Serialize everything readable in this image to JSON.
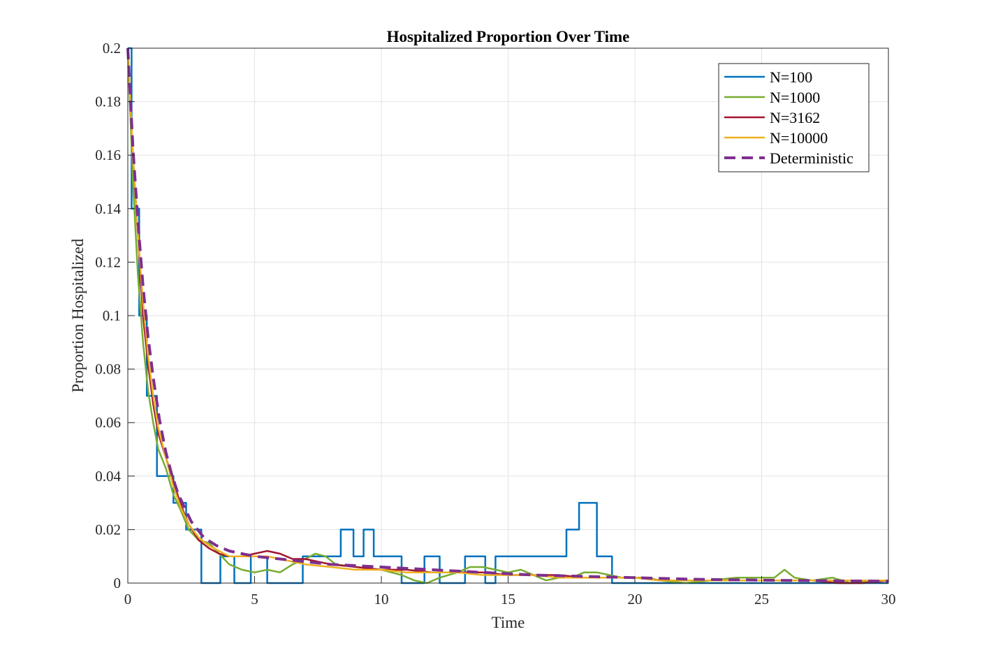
{
  "chart_data": {
    "type": "line",
    "title": "Hospitalized Proportion Over Time",
    "xlabel": "Time",
    "ylabel": "Proportion Hospitalized",
    "xlim": [
      0,
      30
    ],
    "ylim": [
      0,
      0.2
    ],
    "xticks": [
      0,
      5,
      10,
      15,
      20,
      25,
      30
    ],
    "yticks": [
      0,
      0.02,
      0.04,
      0.06,
      0.08,
      0.1,
      0.12,
      0.14,
      0.16,
      0.18,
      0.2
    ],
    "grid": true,
    "legend_position": "top-right",
    "series": [
      {
        "name": "N=100",
        "color": "#0072BD",
        "style": "step",
        "x": [
          0,
          0.15,
          0.45,
          0.75,
          1.15,
          1.8,
          2.3,
          2.9,
          3.65,
          4.2,
          4.85,
          5.5,
          6.9,
          8.4,
          8.9,
          9.3,
          9.7,
          10.8,
          11.7,
          12.3,
          13.3,
          14.1,
          14.5,
          17.3,
          17.8,
          18.5,
          19.1,
          30
        ],
        "y": [
          0.2,
          0.14,
          0.1,
          0.07,
          0.04,
          0.03,
          0.02,
          0.0,
          0.01,
          0.0,
          0.01,
          0.0,
          0.01,
          0.02,
          0.01,
          0.02,
          0.01,
          0.0,
          0.01,
          0.0,
          0.01,
          0.0,
          0.01,
          0.02,
          0.03,
          0.01,
          0.0,
          0.0
        ]
      },
      {
        "name": "N=1000",
        "color": "#77AC30",
        "x": [
          0,
          0.2,
          0.4,
          0.6,
          0.8,
          1.0,
          1.2,
          1.5,
          1.8,
          2.1,
          2.4,
          2.8,
          3.2,
          3.6,
          4.0,
          4.5,
          5.0,
          5.5,
          6.0,
          6.5,
          7.0,
          7.4,
          7.8,
          8.2,
          9.0,
          10.0,
          10.8,
          11.3,
          11.8,
          12.3,
          13.0,
          13.5,
          14.0,
          14.5,
          15.0,
          15.5,
          16.0,
          16.5,
          17.0,
          17.5,
          18.0,
          18.5,
          19.0,
          19.5,
          20.0,
          20.5,
          21.0,
          22.0,
          23.0,
          24.0,
          25.0,
          25.5,
          25.9,
          26.3,
          27.0,
          27.8,
          28.5,
          30.0
        ],
        "y": [
          0.2,
          0.15,
          0.115,
          0.09,
          0.072,
          0.06,
          0.05,
          0.043,
          0.033,
          0.027,
          0.02,
          0.016,
          0.015,
          0.011,
          0.007,
          0.005,
          0.004,
          0.005,
          0.004,
          0.007,
          0.009,
          0.011,
          0.01,
          0.007,
          0.006,
          0.005,
          0.003,
          0.001,
          0.0,
          0.002,
          0.004,
          0.006,
          0.006,
          0.005,
          0.004,
          0.005,
          0.003,
          0.001,
          0.002,
          0.002,
          0.004,
          0.004,
          0.003,
          0.002,
          0.002,
          0.002,
          0.001,
          0.0,
          0.001,
          0.002,
          0.002,
          0.002,
          0.005,
          0.002,
          0.001,
          0.002,
          0.0,
          0.001
        ]
      },
      {
        "name": "N=3162",
        "color": "#A2142F",
        "x": [
          0,
          0.2,
          0.4,
          0.6,
          0.8,
          1.0,
          1.2,
          1.5,
          1.8,
          2.1,
          2.4,
          2.8,
          3.2,
          3.6,
          4.0,
          4.5,
          5.0,
          5.5,
          6.0,
          6.5,
          7.0,
          7.5,
          8.0,
          9.0,
          10.0,
          11.0,
          12.0,
          13.0,
          14.0,
          15.0,
          16.0,
          17.0,
          18.0,
          19.0,
          20.0,
          21.0,
          22.0,
          23.0,
          24.0,
          25.0,
          26.0,
          27.0,
          28.0,
          29.0,
          30.0
        ],
        "y": [
          0.2,
          0.16,
          0.13,
          0.1,
          0.082,
          0.067,
          0.056,
          0.047,
          0.038,
          0.029,
          0.022,
          0.016,
          0.013,
          0.011,
          0.01,
          0.01,
          0.011,
          0.012,
          0.011,
          0.009,
          0.009,
          0.008,
          0.007,
          0.006,
          0.005,
          0.005,
          0.004,
          0.004,
          0.004,
          0.003,
          0.003,
          0.003,
          0.002,
          0.002,
          0.002,
          0.001,
          0.001,
          0.001,
          0.001,
          0.001,
          0.001,
          0.001,
          0.0,
          0.0,
          0.001
        ]
      },
      {
        "name": "N=10000",
        "color": "#EDB120",
        "x": [
          0,
          0.2,
          0.4,
          0.6,
          0.8,
          1.0,
          1.2,
          1.5,
          1.8,
          2.1,
          2.4,
          2.8,
          3.2,
          3.6,
          4.0,
          4.5,
          5.0,
          5.5,
          6.0,
          6.5,
          7.0,
          8.0,
          9.0,
          10.0,
          11.0,
          12.0,
          13.0,
          14.0,
          15.0,
          16.0,
          17.0,
          18.0,
          19.0,
          20.0,
          21.0,
          22.0,
          23.0,
          24.0,
          25.0,
          26.0,
          27.0,
          28.0,
          29.0,
          30.0
        ],
        "y": [
          0.2,
          0.16,
          0.13,
          0.105,
          0.085,
          0.07,
          0.058,
          0.047,
          0.036,
          0.028,
          0.022,
          0.017,
          0.014,
          0.012,
          0.01,
          0.01,
          0.01,
          0.01,
          0.009,
          0.008,
          0.007,
          0.006,
          0.005,
          0.005,
          0.004,
          0.004,
          0.004,
          0.003,
          0.003,
          0.003,
          0.002,
          0.002,
          0.002,
          0.002,
          0.001,
          0.001,
          0.001,
          0.001,
          0.001,
          0.001,
          0.001,
          0.001,
          0.001,
          0.001
        ]
      },
      {
        "name": "Deterministic",
        "color": "#7E2F8E",
        "dashed": true,
        "x": [
          0,
          0.2,
          0.4,
          0.6,
          0.8,
          1.0,
          1.25,
          1.5,
          1.75,
          2.0,
          2.5,
          3.0,
          3.5,
          4.0,
          5.0,
          6.0,
          7.0,
          8.0,
          10.0,
          12.0,
          14.0,
          16.0,
          18.0,
          20.0,
          22.0,
          24.0,
          26.0,
          28.0,
          30.0
        ],
        "y": [
          0.2,
          0.163,
          0.135,
          0.111,
          0.092,
          0.077,
          0.061,
          0.049,
          0.04,
          0.033,
          0.023,
          0.017,
          0.014,
          0.012,
          0.01,
          0.009,
          0.008,
          0.007,
          0.006,
          0.005,
          0.004,
          0.003,
          0.0025,
          0.002,
          0.0015,
          0.0012,
          0.001,
          0.0008,
          0.0007
        ]
      }
    ]
  }
}
